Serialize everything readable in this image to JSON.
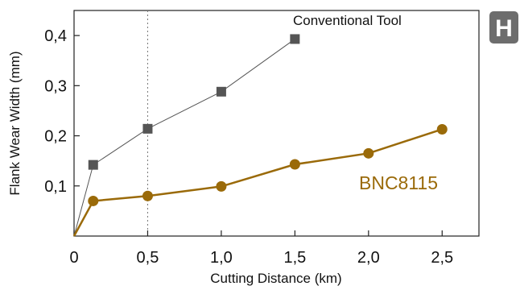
{
  "badge": {
    "text": "H",
    "color": "#6d6d6d"
  },
  "chart_data": {
    "type": "line",
    "title": "",
    "xlabel": "Cutting Distance (km)",
    "ylabel": "Flank Wear Width (mm)",
    "xlim": [
      0,
      2.75
    ],
    "ylim": [
      0,
      0.45
    ],
    "x_ticks": [
      0,
      0.5,
      1.0,
      1.5,
      2.0,
      2.5
    ],
    "x_tick_labels": [
      "0",
      "0,5",
      "1,0",
      "1,5",
      "2,0",
      "2,5"
    ],
    "y_ticks": [
      0.1,
      0.2,
      0.3,
      0.4
    ],
    "y_tick_labels": [
      "0,1",
      "0,2",
      "0,3",
      "0,4"
    ],
    "reference_line_x": 0.5,
    "grid": false,
    "series": [
      {
        "name": "Conventional Tool",
        "marker": "square",
        "color": "#555555",
        "x": [
          0,
          0.13,
          0.5,
          1.0,
          1.5
        ],
        "y": [
          0,
          0.142,
          0.214,
          0.288,
          0.393
        ]
      },
      {
        "name": "BNC8115",
        "marker": "circle",
        "color": "#9a6a09",
        "x": [
          0,
          0.13,
          0.5,
          1.0,
          1.5,
          2.0,
          2.5
        ],
        "y": [
          0,
          0.07,
          0.08,
          0.099,
          0.143,
          0.165,
          0.213
        ]
      }
    ]
  }
}
